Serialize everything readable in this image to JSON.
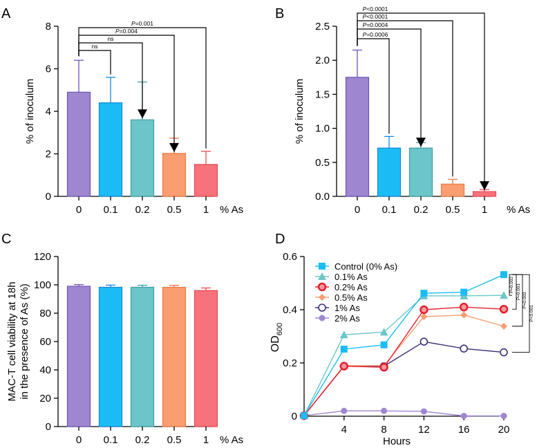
{
  "colors": {
    "purple": "#9e86d1",
    "blue": "#1bbcf5",
    "teal": "#6cc6c9",
    "orange": "#fa9d70",
    "red": "#f7727a",
    "purpleEdge": "#6e54b0",
    "blueEdge": "#1588d6",
    "tealEdge": "#3b9fa3",
    "orangeEdge": "#ea7a45",
    "redEdge": "#e54a55",
    "lineCyan": "#1bbcf5",
    "lineTeal": "#6cc6c9",
    "lineRed": "#e51e2c",
    "lineOrange": "#fa9d70",
    "lineNavy": "#3a2f78",
    "linePurple": "#9e86d1"
  },
  "chart_data": [
    {
      "panel": "A",
      "type": "bar",
      "ylabel": "% of inoculum",
      "xlabel": "% As",
      "categories": [
        "0",
        "0.1",
        "0.2",
        "0.5",
        "1"
      ],
      "values": [
        4.9,
        4.4,
        3.6,
        2.02,
        1.5
      ],
      "errors": [
        1.5,
        1.2,
        1.78,
        0.72,
        0.62
      ],
      "ylim": [
        0,
        8
      ],
      "yticks": [
        "0",
        "2",
        "4",
        "6",
        "8"
      ],
      "comparisons": [
        {
          "label": "ns",
          "to": 1,
          "arrow": false
        },
        {
          "label": "ns",
          "to": 2,
          "arrow": true
        },
        {
          "label": "P=0.004",
          "to": 3,
          "arrow": true
        },
        {
          "label": "P=0.001",
          "to": 4,
          "arrow": false
        }
      ]
    },
    {
      "panel": "B",
      "type": "bar",
      "ylabel": "% of inoculum",
      "xlabel": "% As",
      "categories": [
        "0",
        "0.1",
        "0.2",
        "0.5",
        "1"
      ],
      "values": [
        1.75,
        0.71,
        0.71,
        0.18,
        0.07
      ],
      "errors": [
        0.4,
        0.17,
        0.08,
        0.07,
        0.03
      ],
      "ylim": [
        0,
        2.5
      ],
      "yticks": [
        "0.0",
        "0.5",
        "1.0",
        "1.5",
        "2.0",
        "2.5"
      ],
      "comparisons": [
        {
          "label": "P=0.0006",
          "to": 1,
          "arrow": false
        },
        {
          "label": "P=0.0004",
          "to": 2,
          "arrow": true
        },
        {
          "label": "P<0.0001",
          "to": 3,
          "arrow": false
        },
        {
          "label": "P<0.0001",
          "to": 4,
          "arrow": true
        }
      ]
    },
    {
      "panel": "C",
      "type": "bar",
      "ylabel_lines": [
        "MAC-T cell viability at 18h",
        "in the presence of As (%)"
      ],
      "xlabel": "% As",
      "categories": [
        "0",
        "0.1",
        "0.2",
        "0.5",
        "1"
      ],
      "values": [
        99,
        98.3,
        98.3,
        98.3,
        96
      ],
      "errors": [
        1.2,
        1.5,
        1.4,
        1.3,
        1.8
      ],
      "ylim": [
        0,
        120
      ],
      "yticks": [
        "0",
        "20",
        "40",
        "60",
        "80",
        "100",
        "120"
      ]
    },
    {
      "panel": "D",
      "type": "line",
      "ylabel": "OD",
      "ylabel_sub": "600",
      "xlabel": "Hours",
      "x": [
        0,
        4,
        8,
        12,
        16,
        20
      ],
      "xticks": [
        "4",
        "8",
        "12",
        "16",
        "20"
      ],
      "ylim": [
        0,
        0.6
      ],
      "yticks": [
        "0",
        "0.2",
        "0.4",
        "0.6"
      ],
      "series": [
        {
          "name": "Control (0% As)",
          "marker": "square",
          "values": [
            0.002,
            0.252,
            0.268,
            0.462,
            0.466,
            0.532
          ]
        },
        {
          "name": "0.1% As",
          "marker": "triangle",
          "values": [
            0.002,
            0.306,
            0.316,
            0.452,
            0.452,
            0.454
          ]
        },
        {
          "name": "0.2% As",
          "marker": "ring",
          "values": [
            0.002,
            0.188,
            0.184,
            0.4,
            0.41,
            0.402
          ]
        },
        {
          "name": "0.5% As",
          "marker": "diamond",
          "values": [
            0.002,
            0.19,
            0.19,
            0.374,
            0.38,
            0.338
          ]
        },
        {
          "name": "1% As",
          "marker": "open-circle",
          "values": [
            0.002,
            0.188,
            0.188,
            0.28,
            0.254,
            0.24
          ]
        },
        {
          "name": "2% As",
          "marker": "circle",
          "values": [
            0.002,
            0.02,
            0.02,
            0.018,
            0.001,
            0.001
          ]
        }
      ],
      "comparisons": [
        "P=0.002",
        "P=0.001",
        "P=0.003",
        "P<0.001"
      ]
    }
  ],
  "panel_labels": [
    "A",
    "B",
    "C",
    "D"
  ]
}
